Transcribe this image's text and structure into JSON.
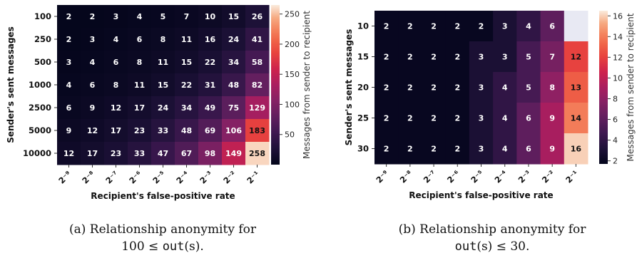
{
  "chart_data": [
    {
      "type": "heatmap",
      "xlabel": "Recipient's false-positive rate",
      "ylabel": "Sender's sent messages",
      "colorbar_label": "Messages from sender to recipient",
      "x_ticks": [
        "2⁻⁹",
        "2⁻⁸",
        "2⁻⁷",
        "2⁻⁶",
        "2⁻⁵",
        "2⁻⁴",
        "2⁻³",
        "2⁻²",
        "2⁻¹"
      ],
      "y_ticks": [
        "100",
        "250",
        "500",
        "1000",
        "2500",
        "5000",
        "10000"
      ],
      "values": [
        [
          2,
          2,
          3,
          4,
          5,
          7,
          10,
          15,
          26
        ],
        [
          2,
          3,
          4,
          6,
          8,
          11,
          16,
          24,
          41
        ],
        [
          3,
          4,
          6,
          8,
          11,
          15,
          22,
          34,
          58
        ],
        [
          4,
          6,
          8,
          11,
          15,
          22,
          31,
          48,
          82
        ],
        [
          6,
          9,
          12,
          17,
          24,
          34,
          49,
          75,
          129
        ],
        [
          9,
          12,
          17,
          23,
          33,
          48,
          69,
          106,
          183
        ],
        [
          12,
          17,
          23,
          33,
          47,
          67,
          98,
          149,
          258
        ]
      ],
      "colorbar_range": [
        0,
        265
      ],
      "colorbar_ticks": [
        "50",
        "100",
        "150",
        "200",
        "250"
      ]
    },
    {
      "type": "heatmap",
      "xlabel": "Recipient's false-positive rate",
      "ylabel": "Sender's sent messages",
      "colorbar_label": "Messages from sender to recipient",
      "x_ticks": [
        "2⁻⁹",
        "2⁻⁸",
        "2⁻⁷",
        "2⁻⁶",
        "2⁻⁵",
        "2⁻⁴",
        "2⁻³",
        "2⁻²",
        "2⁻¹"
      ],
      "y_ticks": [
        "10",
        "15",
        "20",
        "25",
        "30"
      ],
      "values": [
        [
          2,
          2,
          2,
          2,
          2,
          3,
          4,
          6,
          null
        ],
        [
          2,
          2,
          2,
          2,
          3,
          3,
          5,
          7,
          12
        ],
        [
          2,
          2,
          2,
          2,
          3,
          4,
          5,
          8,
          13
        ],
        [
          2,
          2,
          2,
          2,
          3,
          4,
          6,
          9,
          14
        ],
        [
          2,
          2,
          2,
          2,
          3,
          4,
          6,
          9,
          16
        ]
      ],
      "colorbar_range": [
        1.7,
        16.5
      ],
      "colorbar_ticks": [
        "2",
        "4",
        "6",
        "8",
        "10",
        "12",
        "14",
        "16"
      ]
    }
  ],
  "captions": {
    "a_line1": "(a) Relationship anonymity for",
    "a_line2_prefix": "100 ≤ ",
    "a_line2_func": "out",
    "a_line2_suffix": "(s).",
    "b_line1": "(b) Relationship anonymity for",
    "b_line2_func": "out",
    "b_line2_suffix": "(s) ≤ 30."
  },
  "colors": {
    "missing_cell": "#e8e9f3"
  }
}
